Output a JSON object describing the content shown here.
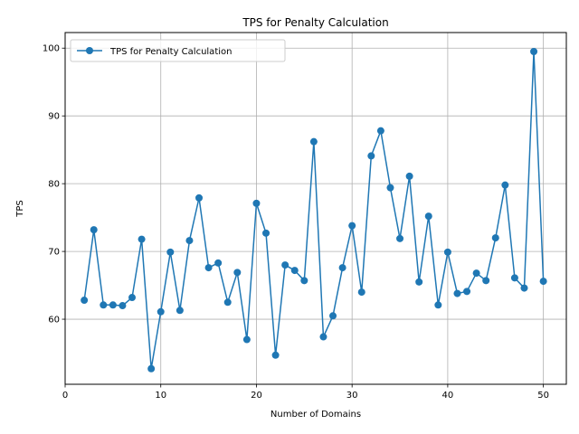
{
  "chart_data": {
    "type": "line",
    "title": "TPS for Penalty Calculation",
    "xlabel": "Number of Domains",
    "ylabel": "TPS",
    "xlim": [
      0,
      52.4
    ],
    "ylim": [
      50.4,
      102.3
    ],
    "xticks": [
      0,
      10,
      20,
      30,
      40,
      50
    ],
    "yticks": [
      60,
      70,
      80,
      90,
      100
    ],
    "grid": true,
    "legend_position": "top-left",
    "series": [
      {
        "name": "TPS for Penalty Calculation",
        "color": "#1f77b4",
        "x": [
          2,
          3,
          4,
          5,
          6,
          7,
          8,
          9,
          10,
          11,
          12,
          13,
          14,
          15,
          16,
          17,
          18,
          19,
          20,
          21,
          22,
          23,
          24,
          25,
          26,
          27,
          28,
          29,
          30,
          31,
          32,
          33,
          34,
          35,
          36,
          37,
          38,
          39,
          40,
          41,
          42,
          43,
          44,
          45,
          46,
          47,
          48,
          49,
          50
        ],
        "values": [
          62.8,
          73.2,
          62.1,
          62.1,
          62.0,
          63.2,
          71.8,
          52.7,
          61.1,
          69.9,
          61.3,
          71.6,
          77.9,
          67.6,
          68.3,
          62.5,
          66.9,
          57.0,
          77.1,
          72.7,
          54.7,
          68.0,
          67.2,
          65.7,
          86.2,
          57.4,
          60.5,
          67.6,
          73.8,
          64.0,
          84.1,
          87.8,
          79.4,
          71.9,
          81.1,
          65.5,
          75.2,
          62.1,
          69.9,
          63.8,
          64.1,
          66.8,
          65.7,
          72.0,
          79.8,
          66.1,
          64.6,
          99.5,
          65.6
        ]
      }
    ]
  }
}
